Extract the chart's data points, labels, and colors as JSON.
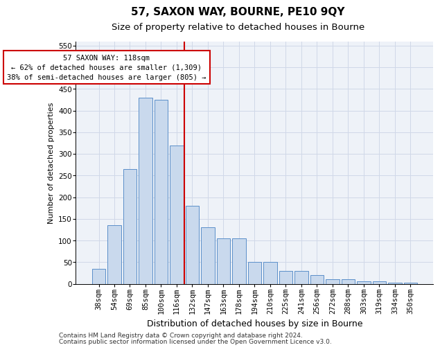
{
  "title": "57, SAXON WAY, BOURNE, PE10 9QY",
  "subtitle": "Size of property relative to detached houses in Bourne",
  "xlabel": "Distribution of detached houses by size in Bourne",
  "ylabel": "Number of detached properties",
  "categories": [
    "38sqm",
    "54sqm",
    "69sqm",
    "85sqm",
    "100sqm",
    "116sqm",
    "132sqm",
    "147sqm",
    "163sqm",
    "178sqm",
    "194sqm",
    "210sqm",
    "225sqm",
    "241sqm",
    "256sqm",
    "272sqm",
    "288sqm",
    "303sqm",
    "319sqm",
    "334sqm",
    "350sqm"
  ],
  "values": [
    35,
    135,
    265,
    430,
    425,
    320,
    180,
    130,
    105,
    105,
    50,
    50,
    30,
    30,
    20,
    10,
    10,
    5,
    5,
    2,
    2
  ],
  "bar_color": "#c9d9ed",
  "bar_edge_color": "#5b8fc9",
  "vline_x": 5.5,
  "vline_color": "#cc0000",
  "annotation_line1": "57 SAXON WAY: 118sqm",
  "annotation_line2": "← 62% of detached houses are smaller (1,309)",
  "annotation_line3": "38% of semi-detached houses are larger (805) →",
  "annotation_box_color": "white",
  "annotation_box_edge_color": "#cc0000",
  "ylim": [
    0,
    560
  ],
  "yticks": [
    0,
    50,
    100,
    150,
    200,
    250,
    300,
    350,
    400,
    450,
    500,
    550
  ],
  "grid_color": "#d0d8e8",
  "background_color": "#eef2f8",
  "footer_line1": "Contains HM Land Registry data © Crown copyright and database right 2024.",
  "footer_line2": "Contains public sector information licensed under the Open Government Licence v3.0.",
  "title_fontsize": 11,
  "subtitle_fontsize": 9.5,
  "xlabel_fontsize": 9,
  "ylabel_fontsize": 8,
  "tick_fontsize": 7.5,
  "annotation_fontsize": 7.5,
  "footer_fontsize": 6.5
}
